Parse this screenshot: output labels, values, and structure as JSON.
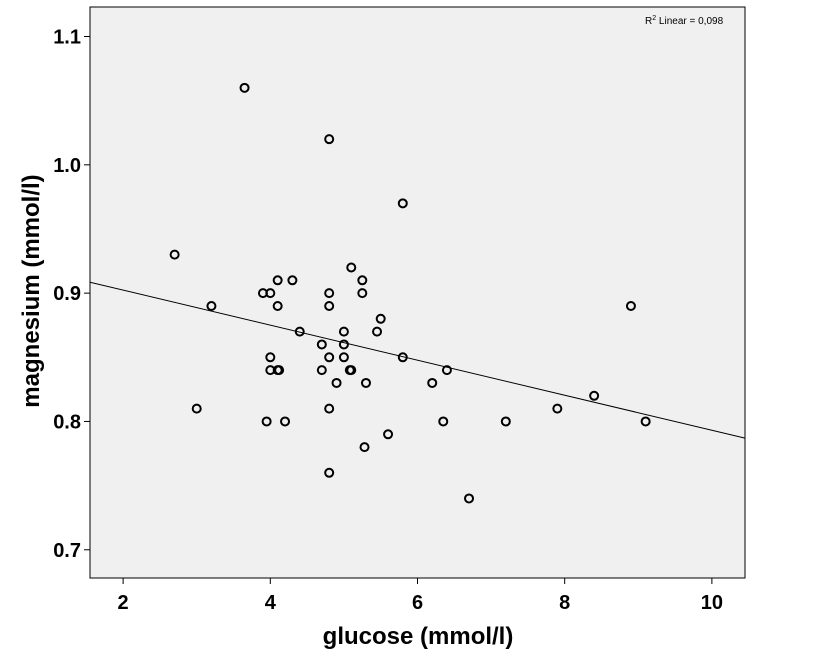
{
  "chart_data": {
    "type": "scatter",
    "xlabel": "glucose (mmol/l)",
    "ylabel": "magnesium (mmol/l)",
    "xlim": [
      1.55,
      10.45
    ],
    "ylim": [
      0.678,
      1.123
    ],
    "xticks": [
      2,
      4,
      6,
      8,
      10
    ],
    "yticks": [
      0.7,
      0.8,
      0.9,
      1.0,
      1.1
    ],
    "xtick_labels": [
      "2",
      "4",
      "6",
      "8",
      "10"
    ],
    "ytick_labels": [
      "0.7",
      "0.8",
      "0.9",
      "1.0",
      "1.1"
    ],
    "grid": false,
    "background_color": "#f0f0f0",
    "marker_color": "#000000",
    "fit_line": {
      "type": "linear",
      "x": [
        1.55,
        10.45
      ],
      "y": [
        0.9085,
        0.787
      ]
    },
    "annotation": {
      "base": "R",
      "sup": "2",
      "text": " Linear = 0,098"
    },
    "points": [
      {
        "x": 2.7,
        "y": 0.93
      },
      {
        "x": 3.0,
        "y": 0.81
      },
      {
        "x": 3.2,
        "y": 0.89
      },
      {
        "x": 3.65,
        "y": 1.06
      },
      {
        "x": 3.9,
        "y": 0.9
      },
      {
        "x": 3.95,
        "y": 0.8
      },
      {
        "x": 4.0,
        "y": 0.9
      },
      {
        "x": 4.0,
        "y": 0.85
      },
      {
        "x": 4.0,
        "y": 0.84
      },
      {
        "x": 4.1,
        "y": 0.91
      },
      {
        "x": 4.1,
        "y": 0.89
      },
      {
        "x": 4.1,
        "y": 0.84
      },
      {
        "x": 4.12,
        "y": 0.84
      },
      {
        "x": 4.2,
        "y": 0.8
      },
      {
        "x": 4.3,
        "y": 0.91
      },
      {
        "x": 4.4,
        "y": 0.87
      },
      {
        "x": 4.7,
        "y": 0.86
      },
      {
        "x": 4.7,
        "y": 0.84
      },
      {
        "x": 4.8,
        "y": 1.02
      },
      {
        "x": 4.8,
        "y": 0.9
      },
      {
        "x": 4.8,
        "y": 0.89
      },
      {
        "x": 4.8,
        "y": 0.85
      },
      {
        "x": 4.8,
        "y": 0.81
      },
      {
        "x": 4.8,
        "y": 0.76
      },
      {
        "x": 4.9,
        "y": 0.83
      },
      {
        "x": 5.0,
        "y": 0.87
      },
      {
        "x": 5.0,
        "y": 0.86
      },
      {
        "x": 5.0,
        "y": 0.85
      },
      {
        "x": 5.08,
        "y": 0.84
      },
      {
        "x": 5.1,
        "y": 0.92
      },
      {
        "x": 5.1,
        "y": 0.84
      },
      {
        "x": 5.25,
        "y": 0.91
      },
      {
        "x": 5.25,
        "y": 0.9
      },
      {
        "x": 5.28,
        "y": 0.78
      },
      {
        "x": 5.3,
        "y": 0.83
      },
      {
        "x": 5.45,
        "y": 0.87
      },
      {
        "x": 5.5,
        "y": 0.88
      },
      {
        "x": 5.6,
        "y": 0.79
      },
      {
        "x": 5.8,
        "y": 0.97
      },
      {
        "x": 5.8,
        "y": 0.85
      },
      {
        "x": 6.2,
        "y": 0.83
      },
      {
        "x": 6.35,
        "y": 0.8
      },
      {
        "x": 6.4,
        "y": 0.84
      },
      {
        "x": 6.7,
        "y": 0.74
      },
      {
        "x": 7.2,
        "y": 0.8
      },
      {
        "x": 7.9,
        "y": 0.81
      },
      {
        "x": 8.4,
        "y": 0.82
      },
      {
        "x": 8.9,
        "y": 0.89
      },
      {
        "x": 9.1,
        "y": 0.8
      }
    ]
  }
}
